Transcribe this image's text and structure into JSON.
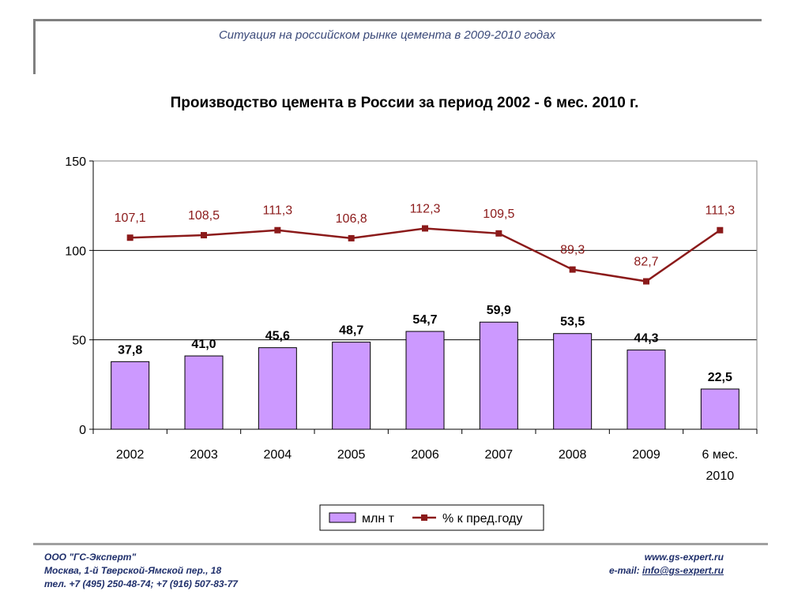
{
  "header": {
    "title": "Ситуация на российском рынке цемента в 2009-2010 годах"
  },
  "chart_data": {
    "type": "bar",
    "title": "Производство цемента в России за период 2002 - 6 мес. 2010 г.",
    "categories": [
      [
        "2002"
      ],
      [
        "2003"
      ],
      [
        "2004"
      ],
      [
        "2005"
      ],
      [
        "2006"
      ],
      [
        "2007"
      ],
      [
        "2008"
      ],
      [
        "2009"
      ],
      [
        "6 мес.",
        "2010"
      ]
    ],
    "ylim": [
      0,
      150
    ],
    "yticks": [
      0,
      50,
      100,
      150
    ],
    "grid": true,
    "legend_position": "bottom",
    "series": [
      {
        "name": "млн т",
        "type": "bar",
        "color": "#cc99ff",
        "values": [
          37.8,
          41.0,
          45.6,
          48.7,
          54.7,
          59.9,
          53.5,
          44.3,
          22.5
        ],
        "labels": [
          "37,8",
          "41,0",
          "45,6",
          "48,7",
          "54,7",
          "59,9",
          "53,5",
          "44,3",
          "22,5"
        ]
      },
      {
        "name": "% к пред.году",
        "type": "line",
        "color": "#8b1a1a",
        "values": [
          107.1,
          108.5,
          111.3,
          106.8,
          112.3,
          109.5,
          89.3,
          82.7,
          111.3
        ],
        "labels": [
          "107,1",
          "108,5",
          "111,3",
          "106,8",
          "112,3",
          "109,5",
          "89,3",
          "82,7",
          "111,3"
        ]
      }
    ]
  },
  "footer": {
    "company": "ООО \"ГС-Эксперт\"",
    "address": "Москва, 1-й Тверской-Ямской пер., 18",
    "phone": "тел. +7 (495) 250-48-74; +7 (916) 507-83-77",
    "website": "www.gs-expert.ru",
    "email_label": "e-mail: ",
    "email": "info@gs-expert.ru"
  }
}
